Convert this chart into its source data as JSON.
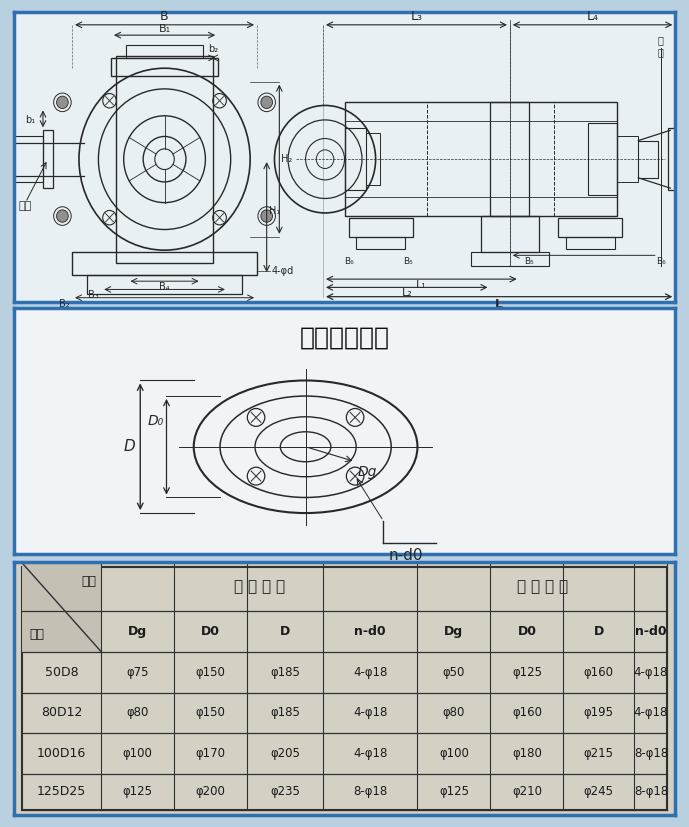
{
  "bg_color": "#b8d0e0",
  "top_panel_bg": "#e8f0f4",
  "mid_panel_bg": "#f0f4f6",
  "table_bg": "#d4d0c4",
  "border_color": "#3070b0",
  "line_color": "#282828",
  "dim_color": "#282828",
  "title_section2": "吸入吐出法兰",
  "table_header1_left": "型号",
  "table_header1_suck": "吸 入 法 兰",
  "table_header1_discharge": "吐 出 法 兰",
  "table_header2": [
    "尺寸",
    "Dg",
    "D0",
    "D",
    "n-d0",
    "Dg",
    "D0",
    "D",
    "n-d0"
  ],
  "table_data": [
    [
      "50D8",
      "φ75",
      "φ150",
      "φ185",
      "4-φ18",
      "φ50",
      "φ125",
      "φ160",
      "4-φ18"
    ],
    [
      "80D12",
      "φ80",
      "φ150",
      "φ185",
      "4-φ18",
      "φ80",
      "φ160",
      "φ195",
      "4-φ18"
    ],
    [
      "100D16",
      "φ100",
      "φ170",
      "φ205",
      "4-φ18",
      "φ100",
      "φ180",
      "φ215",
      "8-φ18"
    ],
    [
      "125D25",
      "φ125",
      "φ200",
      "φ235",
      "8-φ18",
      "φ125",
      "φ210",
      "φ245",
      "8-φ18"
    ]
  ],
  "label_B": "B",
  "label_B1": "B₁",
  "label_b1": "b₁",
  "label_b2": "b₂",
  "label_H2": "H₂",
  "label_H1": "H₁",
  "label_jinshui": "进水",
  "label_B4": "B₄",
  "label_B3": "B₃",
  "label_B2": "B₂",
  "label_4phid": "4-φd",
  "label_L3": "L₃",
  "label_L4": "L₄",
  "label_chushui": "出\n水",
  "label_B6_l": "B₆",
  "label_B5_l": "B₅",
  "label_B5_r": "B₅",
  "label_B6_r": "B₆",
  "label_L2": "L₂",
  "label_L1": "L₁",
  "label_L": "L",
  "label_D": "D",
  "label_D0": "D₀",
  "label_Dg": "Dg",
  "label_nd0": "n-d0"
}
